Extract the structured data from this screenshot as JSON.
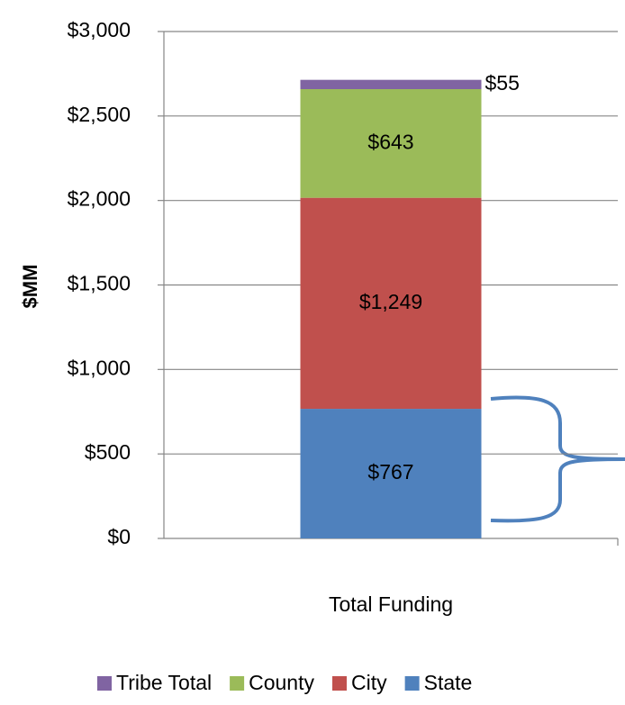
{
  "chart_data": {
    "type": "stacked_bar",
    "categories": [
      "Total Funding"
    ],
    "y_axis_label": "$MM",
    "series": [
      {
        "name": "State",
        "color": "#4f81bd",
        "values": [
          767
        ],
        "value_labels": [
          "$767"
        ]
      },
      {
        "name": "City",
        "color": "#c0504d",
        "values": [
          1249
        ],
        "value_labels": [
          "$1,249"
        ]
      },
      {
        "name": "County",
        "color": "#9bbb59",
        "values": [
          643
        ],
        "value_labels": [
          "$643"
        ]
      },
      {
        "name": "Tribe Total",
        "color": "#8064a2",
        "values": [
          55
        ],
        "value_labels": [
          "$55"
        ]
      }
    ],
    "ylim": [
      0,
      3000
    ],
    "yticks": [
      {
        "value": 0,
        "label": "$0"
      },
      {
        "value": 500,
        "label": "$500"
      },
      {
        "value": 1000,
        "label": "$1,000"
      },
      {
        "value": 1500,
        "label": "$1,500"
      },
      {
        "value": 2000,
        "label": "$2,000"
      },
      {
        "value": 2500,
        "label": "$2,500"
      },
      {
        "value": 3000,
        "label": "$3,000"
      }
    ],
    "grid": true,
    "legend": "bottom"
  }
}
